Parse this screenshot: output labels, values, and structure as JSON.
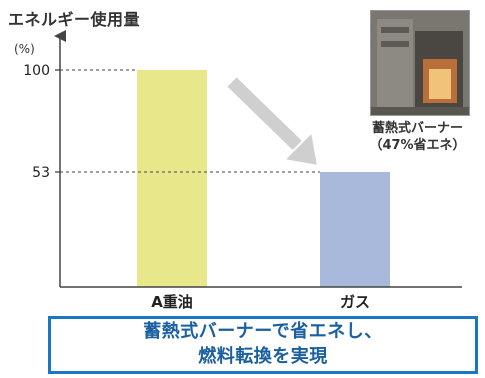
{
  "chart_data": {
    "type": "bar",
    "title": "エネルギー使用量",
    "unit_label": "(%)",
    "categories": [
      "A重油",
      "ガス"
    ],
    "values": [
      100,
      53
    ],
    "ylim": [
      0,
      100
    ],
    "y_ticks": [
      100,
      53
    ],
    "colors": {
      "bar_a": "#e8e78a",
      "bar_gas": "#a9b9dc",
      "arrow": "#cfcfcf"
    },
    "grid": "dotted reference lines at tick values"
  },
  "photo": {
    "icon": "burner-furnace-photo",
    "caption_line1": "蓄熱式バーナー",
    "caption_line2": "（47%省エネ）"
  },
  "banner": {
    "line1": "蓄熱式バーナーで省エネし、",
    "line2": "燃料転換を実現",
    "border_color": "#1a78c2"
  }
}
